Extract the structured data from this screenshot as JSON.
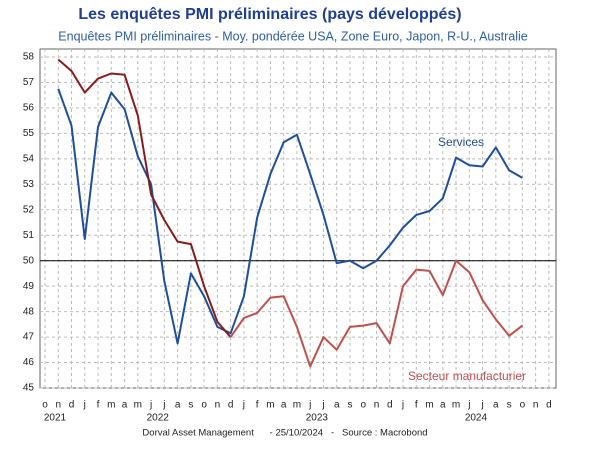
{
  "chart_data": {
    "type": "line",
    "title": "Les enquêtes PMI préliminaires (pays développés)",
    "subtitle": "Enquêtes PMI préliminaires - Moy. pondérée USA, Zone Euro, Japon, R-U., Australie",
    "categories": [
      "o",
      "n",
      "d",
      "j",
      "f",
      "m",
      "a",
      "m",
      "j",
      "j",
      "a",
      "s",
      "o",
      "n",
      "d",
      "j",
      "f",
      "m",
      "a",
      "m",
      "j",
      "j",
      "a",
      "s",
      "o",
      "n",
      "d",
      "j",
      "f",
      "m",
      "a",
      "m",
      "j",
      "j",
      "a",
      "s",
      "o",
      "n",
      "d"
    ],
    "years": [
      "2021",
      "2022",
      "2023",
      "2024"
    ],
    "series": [
      {
        "name": "Services",
        "color": "#1f4e9c",
        "values": [
          null,
          56.75,
          55.3,
          50.85,
          55.25,
          56.6,
          55.95,
          54.1,
          53.0,
          49.2,
          46.75,
          49.5,
          48.6,
          47.4,
          47.15,
          48.6,
          51.7,
          53.4,
          54.65,
          54.95,
          53.4,
          51.8,
          49.9,
          50.0,
          49.7,
          50.0,
          50.6,
          51.3,
          51.8,
          51.95,
          52.45,
          54.05,
          53.75,
          53.7,
          54.45,
          53.55,
          53.25,
          null,
          null
        ]
      },
      {
        "name": "Secteur manufacturier",
        "color": "#8b1a1a",
        "color_2": "#c0504d",
        "color_2_from": 14,
        "values": [
          null,
          57.9,
          57.45,
          56.6,
          57.15,
          57.35,
          57.3,
          55.7,
          52.6,
          51.6,
          50.75,
          50.65,
          49.0,
          47.6,
          47.0,
          47.75,
          47.95,
          48.55,
          48.6,
          47.4,
          45.85,
          47.0,
          46.5,
          47.4,
          47.45,
          47.55,
          46.75,
          49.0,
          49.65,
          49.6,
          48.65,
          50.0,
          49.55,
          48.45,
          47.7,
          47.05,
          47.45,
          null,
          null
        ]
      }
    ],
    "hline": 50,
    "ylim": [
      45,
      58
    ],
    "yticks": [
      45,
      46,
      47,
      48,
      49,
      50,
      51,
      52,
      53,
      54,
      55,
      56,
      57,
      58
    ],
    "grid": true,
    "footer": "Dorval Asset Management      - 25/10/2024   -   Source : Macrobond"
  }
}
